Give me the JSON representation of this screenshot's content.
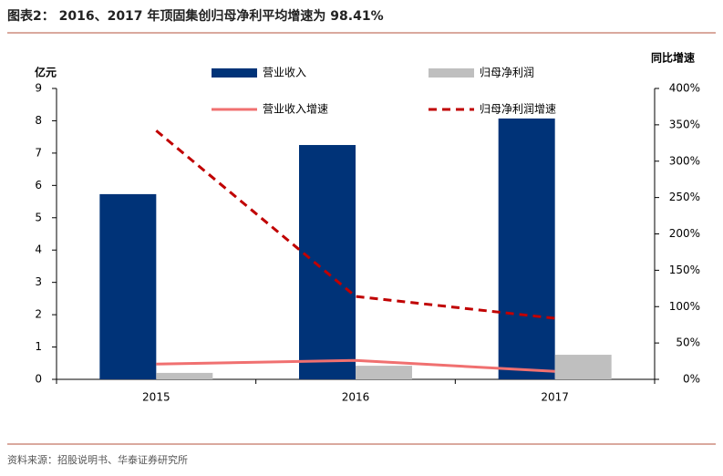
{
  "chart_data": {
    "type": "bar",
    "title": "图表2：  2016、2017 年顶固集创归母净利平均增速为 98.41%",
    "source": "资料来源：招股说明书、华泰证券研究所",
    "ylabel": "亿元",
    "y2label": "同比增速",
    "categories": [
      "2015",
      "2016",
      "2017"
    ],
    "series": [
      {
        "name": "营业收入",
        "type": "bar",
        "color": "#003378",
        "values": [
          5.73,
          7.25,
          8.07
        ]
      },
      {
        "name": "归母净利润",
        "type": "bar",
        "color": "#bfbfbf",
        "values": [
          0.2,
          0.42,
          0.76
        ]
      },
      {
        "name": "营业收入增速",
        "type": "line",
        "axis": "y2",
        "color": "#f07070",
        "dashed": false,
        "values": [
          21,
          26,
          11
        ]
      },
      {
        "name": "归母净利润增速",
        "type": "line",
        "axis": "y2",
        "color": "#c00000",
        "dashed": true,
        "values": [
          342,
          114,
          84
        ]
      }
    ],
    "ylim": [
      0,
      9
    ],
    "yticks": [
      0,
      1,
      2,
      3,
      4,
      5,
      6,
      7,
      8,
      9
    ],
    "y2lim": [
      0,
      400
    ],
    "y2ticks": [
      {
        "value": 0,
        "label": "0%"
      },
      {
        "value": 50,
        "label": "50%"
      },
      {
        "value": 100,
        "label": "100%"
      },
      {
        "value": 150,
        "label": "150%"
      },
      {
        "value": 200,
        "label": "200%"
      },
      {
        "value": 250,
        "label": "250%"
      },
      {
        "value": 300,
        "label": "300%"
      },
      {
        "value": 350,
        "label": "350%"
      },
      {
        "value": 400,
        "label": "400%"
      }
    ]
  }
}
